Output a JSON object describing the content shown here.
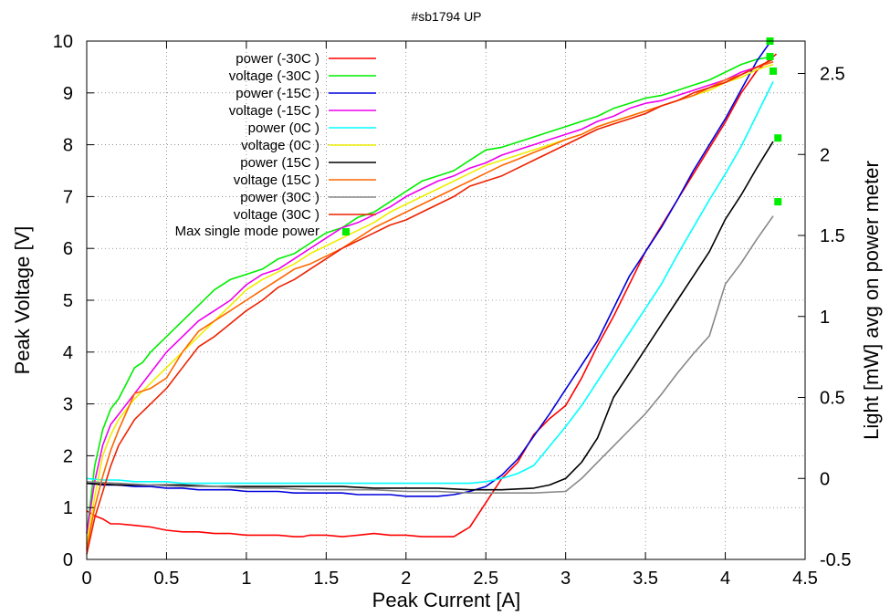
{
  "chart_data": {
    "type": "line",
    "title": "#sb1794 UP",
    "xlabel": "Peak Current [A]",
    "ylabel": "Peak Voltage [V]",
    "y2label": "Light [mW] avg on power meter",
    "xlim": [
      0,
      4.5
    ],
    "ylim": [
      0,
      10
    ],
    "y2lim": [
      -0.5,
      2.7
    ],
    "xticks": [
      "0",
      "0.5",
      "1",
      "1.5",
      "2",
      "2.5",
      "3",
      "3.5",
      "4",
      "4.5"
    ],
    "yticks": [
      "0",
      "1",
      "2",
      "3",
      "4",
      "5",
      "6",
      "7",
      "8",
      "9",
      "10"
    ],
    "y2ticks": [
      "-0.5",
      "0",
      "0.5",
      "1",
      "1.5",
      "2",
      "2.5"
    ],
    "grid": true,
    "legend_position": "top-left",
    "series": [
      {
        "name": "power (-30C )",
        "axis": "y2",
        "color": "#ff0000",
        "x": [
          0,
          0.05,
          0.1,
          0.15,
          0.2,
          0.3,
          0.4,
          0.5,
          0.6,
          0.7,
          0.8,
          0.9,
          1,
          1.1,
          1.2,
          1.3,
          1.35,
          1.4,
          1.5,
          1.6,
          1.7,
          1.8,
          1.9,
          2,
          2.1,
          2.2,
          2.3,
          2.4,
          2.5,
          2.6,
          2.7,
          2.8,
          2.9,
          3,
          3.1,
          3.2,
          3.3,
          3.4,
          3.5,
          3.6,
          3.7,
          3.8,
          3.9,
          4,
          4.1,
          4.2,
          4.32
        ],
        "y": [
          -0.2,
          -0.23,
          -0.25,
          -0.28,
          -0.28,
          -0.29,
          -0.3,
          -0.32,
          -0.33,
          -0.33,
          -0.34,
          -0.34,
          -0.35,
          -0.35,
          -0.35,
          -0.36,
          -0.36,
          -0.35,
          -0.35,
          -0.36,
          -0.35,
          -0.34,
          -0.35,
          -0.35,
          -0.36,
          -0.36,
          -0.36,
          -0.3,
          -0.15,
          0,
          0.1,
          0.27,
          0.37,
          0.45,
          0.62,
          0.82,
          1.0,
          1.2,
          1.4,
          1.56,
          1.72,
          1.88,
          2.04,
          2.2,
          2.38,
          2.52,
          2.62
        ]
      },
      {
        "name": "voltage (-30C )",
        "axis": "y",
        "color": "#00ee00",
        "x": [
          0,
          0.05,
          0.1,
          0.15,
          0.2,
          0.3,
          0.35,
          0.4,
          0.5,
          0.6,
          0.7,
          0.8,
          0.9,
          1,
          1.1,
          1.2,
          1.3,
          1.4,
          1.5,
          1.6,
          1.7,
          1.8,
          1.9,
          2,
          2.1,
          2.2,
          2.3,
          2.4,
          2.5,
          2.6,
          2.7,
          2.8,
          2.9,
          3,
          3.1,
          3.2,
          3.3,
          3.4,
          3.5,
          3.6,
          3.7,
          3.8,
          3.9,
          4,
          4.1,
          4.2,
          4.3
        ],
        "y": [
          0.5,
          1.8,
          2.5,
          2.9,
          3.1,
          3.7,
          3.8,
          4.0,
          4.3,
          4.6,
          4.9,
          5.2,
          5.4,
          5.5,
          5.6,
          5.8,
          5.9,
          6.1,
          6.3,
          6.4,
          6.6,
          6.7,
          6.9,
          7.1,
          7.3,
          7.4,
          7.5,
          7.7,
          7.9,
          7.95,
          8.05,
          8.15,
          8.25,
          8.35,
          8.45,
          8.55,
          8.7,
          8.8,
          8.9,
          8.95,
          9.05,
          9.15,
          9.25,
          9.4,
          9.55,
          9.65,
          9.7
        ]
      },
      {
        "name": "power (-15C )",
        "axis": "y2",
        "color": "#0000dd",
        "x": [
          0,
          0.1,
          0.2,
          0.3,
          0.4,
          0.5,
          0.6,
          0.7,
          0.8,
          0.9,
          1,
          1.1,
          1.2,
          1.3,
          1.4,
          1.5,
          1.6,
          1.7,
          1.8,
          1.9,
          2,
          2.1,
          2.2,
          2.3,
          2.4,
          2.5,
          2.6,
          2.7,
          2.8,
          2.9,
          3,
          3.1,
          3.2,
          3.3,
          3.4,
          3.5,
          3.6,
          3.7,
          3.8,
          3.9,
          4,
          4.1,
          4.2,
          4.3
        ],
        "y": [
          -0.03,
          -0.04,
          -0.04,
          -0.05,
          -0.05,
          -0.06,
          -0.06,
          -0.07,
          -0.07,
          -0.07,
          -0.08,
          -0.08,
          -0.08,
          -0.09,
          -0.09,
          -0.09,
          -0.09,
          -0.1,
          -0.1,
          -0.1,
          -0.11,
          -0.11,
          -0.11,
          -0.1,
          -0.08,
          -0.05,
          0.02,
          0.12,
          0.26,
          0.4,
          0.55,
          0.7,
          0.85,
          1.05,
          1.25,
          1.4,
          1.55,
          1.72,
          1.9,
          2.06,
          2.22,
          2.4,
          2.58,
          2.72
        ]
      },
      {
        "name": "voltage (-15C )",
        "axis": "y",
        "color": "#ee00ee",
        "x": [
          0,
          0.05,
          0.1,
          0.15,
          0.2,
          0.3,
          0.4,
          0.5,
          0.6,
          0.7,
          0.8,
          0.9,
          1,
          1.1,
          1.2,
          1.3,
          1.4,
          1.5,
          1.6,
          1.7,
          1.8,
          1.9,
          2,
          2.1,
          2.2,
          2.3,
          2.4,
          2.5,
          2.6,
          2.7,
          2.8,
          2.9,
          3,
          3.1,
          3.2,
          3.3,
          3.4,
          3.5,
          3.6,
          3.7,
          3.8,
          3.9,
          4,
          4.1,
          4.2,
          4.3
        ],
        "y": [
          0.5,
          1.5,
          2.2,
          2.6,
          2.8,
          3.2,
          3.6,
          4.0,
          4.3,
          4.6,
          4.8,
          5.0,
          5.3,
          5.5,
          5.6,
          5.8,
          6.0,
          6.2,
          6.4,
          6.5,
          6.65,
          6.8,
          7.0,
          7.15,
          7.3,
          7.4,
          7.55,
          7.65,
          7.8,
          7.9,
          8.0,
          8.1,
          8.2,
          8.3,
          8.45,
          8.55,
          8.7,
          8.8,
          8.85,
          8.95,
          9.05,
          9.15,
          9.25,
          9.4,
          9.5,
          9.6
        ]
      },
      {
        "name": "power (0C )",
        "axis": "y2",
        "color": "#00ffff",
        "x": [
          0,
          0.1,
          0.2,
          0.3,
          0.4,
          0.5,
          0.6,
          0.7,
          0.8,
          0.9,
          1,
          1.2,
          1.4,
          1.6,
          1.8,
          2,
          2.2,
          2.4,
          2.5,
          2.6,
          2.7,
          2.8,
          2.9,
          3,
          3.1,
          3.2,
          3.3,
          3.4,
          3.5,
          3.6,
          3.7,
          3.8,
          3.9,
          4,
          4.1,
          4.2,
          4.3
        ],
        "y": [
          0,
          -0.01,
          -0.01,
          -0.02,
          -0.02,
          -0.02,
          -0.03,
          -0.03,
          -0.03,
          -0.03,
          -0.03,
          -0.03,
          -0.03,
          -0.03,
          -0.03,
          -0.03,
          -0.03,
          -0.03,
          -0.02,
          0,
          0.03,
          0.08,
          0.2,
          0.32,
          0.45,
          0.6,
          0.75,
          0.9,
          1.05,
          1.2,
          1.38,
          1.55,
          1.72,
          1.88,
          2.05,
          2.25,
          2.45
        ]
      },
      {
        "name": "voltage (0C )",
        "axis": "y",
        "color": "#eeee00",
        "x": [
          0,
          0.05,
          0.1,
          0.15,
          0.2,
          0.3,
          0.4,
          0.5,
          0.6,
          0.7,
          0.8,
          0.9,
          1,
          1.1,
          1.2,
          1.3,
          1.4,
          1.5,
          1.6,
          1.7,
          1.8,
          1.9,
          2,
          2.1,
          2.2,
          2.3,
          2.4,
          2.5,
          2.6,
          2.7,
          2.8,
          2.9,
          3,
          3.1,
          3.2,
          3.3,
          3.4,
          3.5,
          3.6,
          3.7,
          3.8,
          3.9,
          4,
          4.1,
          4.2,
          4.3
        ],
        "y": [
          0.3,
          1.2,
          2.0,
          2.4,
          2.7,
          3.1,
          3.4,
          3.7,
          4.0,
          4.3,
          4.6,
          4.9,
          5.2,
          5.4,
          5.55,
          5.7,
          5.9,
          6.05,
          6.2,
          6.35,
          6.5,
          6.7,
          6.85,
          7.0,
          7.15,
          7.3,
          7.45,
          7.6,
          7.7,
          7.8,
          7.9,
          8.0,
          8.1,
          8.2,
          8.35,
          8.45,
          8.55,
          8.65,
          8.75,
          8.85,
          8.95,
          9.05,
          9.2,
          9.3,
          9.45,
          9.55
        ]
      },
      {
        "name": "power (15C )",
        "axis": "y2",
        "color": "#000000",
        "x": [
          0,
          0.2,
          0.4,
          0.6,
          0.8,
          1,
          1.2,
          1.4,
          1.6,
          1.8,
          2,
          2.2,
          2.4,
          2.6,
          2.8,
          2.9,
          3,
          3.1,
          3.2,
          3.3,
          3.4,
          3.5,
          3.6,
          3.7,
          3.8,
          3.9,
          4,
          4.1,
          4.2,
          4.3
        ],
        "y": [
          -0.03,
          -0.04,
          -0.04,
          -0.04,
          -0.05,
          -0.05,
          -0.05,
          -0.05,
          -0.05,
          -0.06,
          -0.06,
          -0.06,
          -0.07,
          -0.07,
          -0.06,
          -0.04,
          0.0,
          0.1,
          0.25,
          0.5,
          0.65,
          0.8,
          0.95,
          1.1,
          1.25,
          1.4,
          1.6,
          1.75,
          1.92,
          2.08
        ]
      },
      {
        "name": "voltage (15C )",
        "axis": "y",
        "color": "#ff6600",
        "x": [
          0,
          0.05,
          0.1,
          0.15,
          0.2,
          0.3,
          0.4,
          0.5,
          0.6,
          0.7,
          0.8,
          0.9,
          1,
          1.1,
          1.2,
          1.3,
          1.4,
          1.5,
          1.6,
          1.7,
          1.8,
          1.9,
          2,
          2.1,
          2.2,
          2.3,
          2.4,
          2.5,
          2.6,
          2.7,
          2.8,
          2.9,
          3,
          3.1,
          3.2,
          3.3,
          3.4,
          3.5,
          3.6,
          3.7,
          3.8,
          3.9,
          4,
          4.1,
          4.2,
          4.3
        ],
        "y": [
          0.2,
          1.0,
          1.6,
          2.1,
          2.5,
          3.2,
          3.3,
          3.5,
          4.0,
          4.4,
          4.6,
          4.8,
          5.0,
          5.2,
          5.4,
          5.6,
          5.7,
          5.85,
          6.0,
          6.2,
          6.4,
          6.55,
          6.7,
          6.85,
          7.0,
          7.15,
          7.3,
          7.45,
          7.6,
          7.72,
          7.85,
          7.97,
          8.1,
          8.2,
          8.35,
          8.45,
          8.55,
          8.65,
          8.75,
          8.85,
          8.95,
          9.1,
          9.25,
          9.35,
          9.5,
          9.6
        ]
      },
      {
        "name": "power (30C )",
        "axis": "y2",
        "color": "#888888",
        "x": [
          0,
          0.2,
          0.4,
          0.6,
          0.8,
          1,
          1.2,
          1.4,
          1.6,
          1.8,
          2,
          2.2,
          2.4,
          2.6,
          2.8,
          3,
          3.1,
          3.2,
          3.3,
          3.4,
          3.5,
          3.6,
          3.7,
          3.8,
          3.9,
          4,
          4.1,
          4.2,
          4.3
        ],
        "y": [
          -0.02,
          -0.03,
          -0.04,
          -0.05,
          -0.05,
          -0.06,
          -0.06,
          -0.07,
          -0.07,
          -0.07,
          -0.08,
          -0.08,
          -0.09,
          -0.09,
          -0.09,
          -0.08,
          0.0,
          0.1,
          0.2,
          0.3,
          0.4,
          0.52,
          0.65,
          0.77,
          0.88,
          1.2,
          1.33,
          1.48,
          1.62
        ]
      },
      {
        "name": "voltage (30C )",
        "axis": "y",
        "color": "#ee2200",
        "x": [
          0,
          0.05,
          0.1,
          0.15,
          0.2,
          0.3,
          0.4,
          0.5,
          0.6,
          0.7,
          0.8,
          0.9,
          1,
          1.1,
          1.2,
          1.3,
          1.4,
          1.5,
          1.6,
          1.7,
          1.8,
          1.9,
          2,
          2.1,
          2.2,
          2.3,
          2.4,
          2.5,
          2.6,
          2.7,
          2.8,
          2.9,
          3,
          3.1,
          3.2,
          3.3,
          3.4,
          3.5,
          3.6,
          3.7,
          3.8,
          3.9,
          4,
          4.1,
          4.2,
          4.3
        ],
        "y": [
          0.1,
          0.8,
          1.3,
          1.8,
          2.2,
          2.7,
          3.0,
          3.3,
          3.7,
          4.1,
          4.3,
          4.55,
          4.8,
          5.0,
          5.25,
          5.4,
          5.6,
          5.8,
          6.0,
          6.15,
          6.3,
          6.45,
          6.55,
          6.7,
          6.85,
          7.0,
          7.2,
          7.3,
          7.4,
          7.55,
          7.7,
          7.85,
          8.0,
          8.15,
          8.3,
          8.4,
          8.5,
          8.6,
          8.75,
          8.85,
          9.0,
          9.1,
          9.2,
          9.35,
          9.5,
          9.65
        ]
      }
    ],
    "markers": {
      "name": "Max single mode power",
      "axis": "y",
      "color": "#00ee00",
      "points": [
        [
          4.28,
          10.0
        ],
        [
          4.28,
          9.7
        ],
        [
          4.3,
          9.42
        ],
        [
          4.33,
          8.13
        ],
        [
          4.33,
          6.9
        ]
      ]
    }
  }
}
